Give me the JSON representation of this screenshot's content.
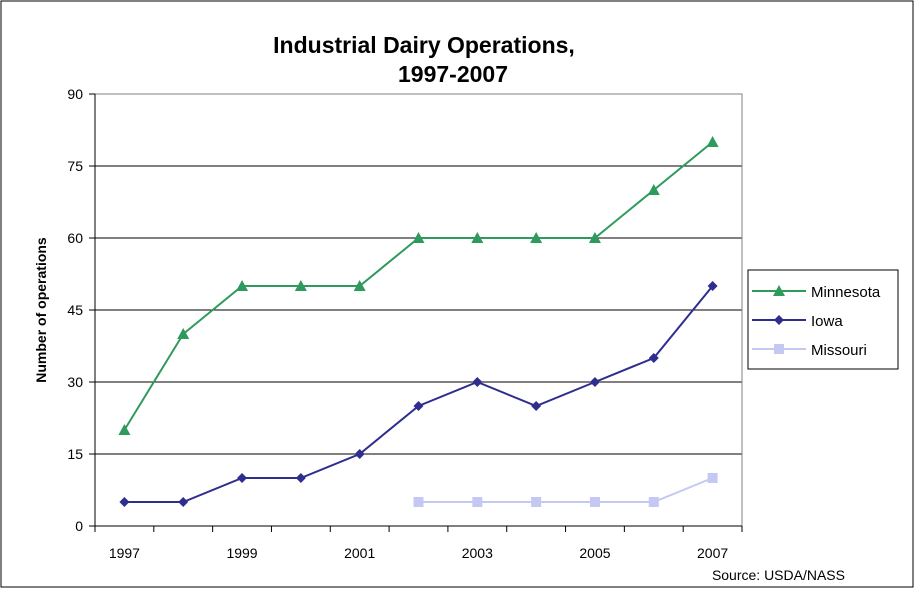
{
  "chart_data": {
    "type": "line",
    "title_line1": "Industrial Dairy Operations,",
    "title_line2": "1997-2007",
    "xlabel": "",
    "ylabel": "Number of operations",
    "x": [
      1997,
      1998,
      1999,
      2000,
      2001,
      2002,
      2003,
      2004,
      2005,
      2006,
      2007
    ],
    "x_tick_labels": [
      "1997",
      "1999",
      "2001",
      "2003",
      "2005",
      "2007"
    ],
    "y_ticks": [
      "0",
      "15",
      "30",
      "45",
      "60",
      "75",
      "90"
    ],
    "ylim": [
      0,
      90
    ],
    "grid": "horizontal",
    "legend_position": "right",
    "series": [
      {
        "name": "Minnesota",
        "color": "#2e9a5c",
        "marker": "triangle",
        "values": [
          20,
          40,
          50,
          50,
          50,
          60,
          60,
          60,
          60,
          70,
          80
        ]
      },
      {
        "name": "Iowa",
        "color": "#2e2e8f",
        "marker": "diamond",
        "values": [
          5,
          5,
          10,
          10,
          15,
          25,
          30,
          25,
          30,
          35,
          50
        ]
      },
      {
        "name": "Missouri",
        "color": "#c5c8f2",
        "marker": "square",
        "values": [
          null,
          null,
          null,
          null,
          null,
          5,
          5,
          5,
          5,
          5,
          10
        ]
      }
    ],
    "source": "Source:  USDA/NASS"
  }
}
